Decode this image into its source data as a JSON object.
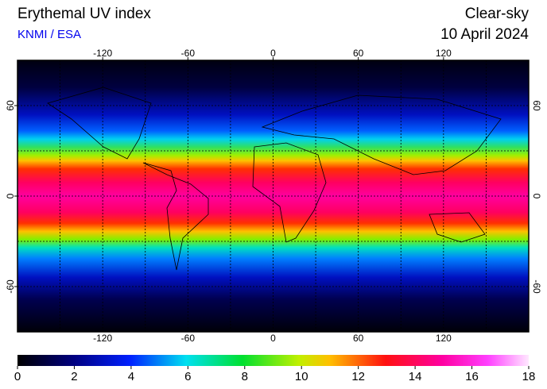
{
  "header": {
    "title": "Erythemal UV index",
    "source": "KNMI / ESA",
    "condition": "Clear-sky",
    "date": "10 April 2024"
  },
  "map": {
    "xlim": [
      -180,
      180
    ],
    "ylim": [
      -90,
      90
    ],
    "xticks": [
      -120,
      -60,
      0,
      60,
      120
    ],
    "yticks": [
      60,
      0,
      -60
    ],
    "xgrid": [
      -150,
      -120,
      -90,
      -60,
      -30,
      0,
      30,
      60,
      90,
      120,
      150
    ],
    "ygrid": [
      60,
      30,
      0,
      -30,
      -60
    ]
  },
  "colorbar": {
    "lim": [
      0,
      18
    ],
    "ticks": [
      0,
      2,
      4,
      6,
      8,
      10,
      12,
      14,
      16,
      18
    ]
  }
}
